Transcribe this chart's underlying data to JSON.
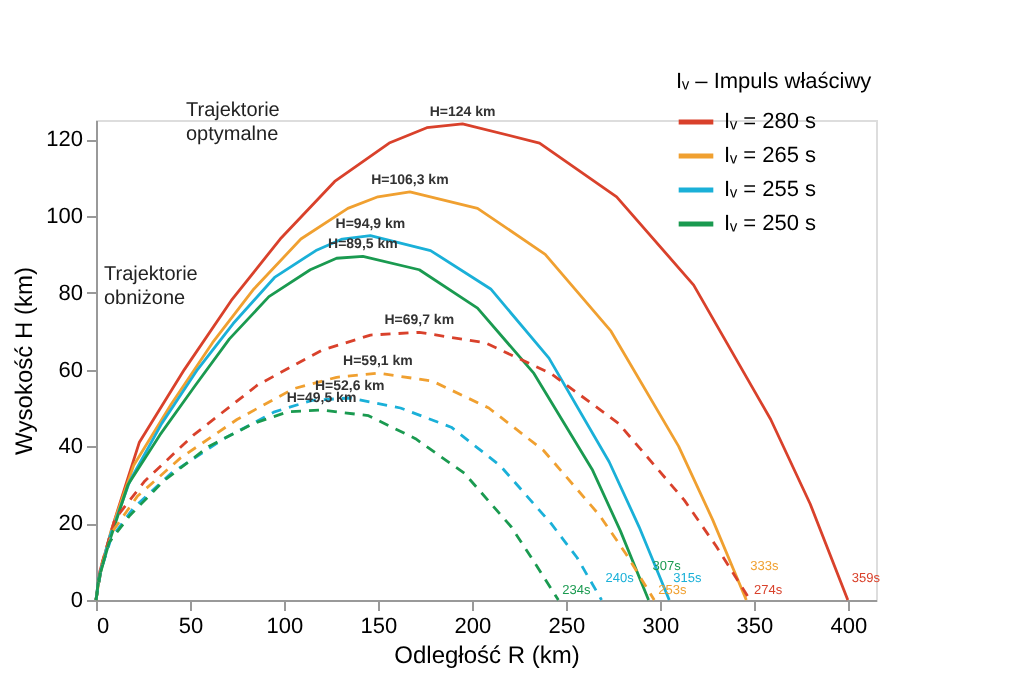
{
  "chart_data": {
    "type": "line",
    "xlabel": "Odległość R (km)",
    "ylabel": "Wysokość H (km)",
    "legend_title": "Iᵥ – Impuls właściwy",
    "legend": "top right",
    "grid": false,
    "marker": "none",
    "xlim": [
      0,
      415
    ],
    "ylim": [
      0,
      125
    ],
    "xticks": [
      0,
      50,
      100,
      150,
      200,
      250,
      300,
      350,
      400
    ],
    "yticks": [
      0,
      20,
      40,
      60,
      80,
      100,
      120
    ],
    "series": [
      {
        "name": "Iᵥ = 280 s",
        "color": "#d9412b",
        "line_style": "solid",
        "x": [
          0,
          2,
          10,
          23,
          47,
          72,
          98,
          127,
          156,
          176,
          195,
          236,
          277,
          318,
          359,
          380,
          400
        ],
        "values": [
          0,
          7.4,
          21,
          41,
          60,
          78,
          94,
          109,
          119,
          123,
          124,
          119,
          105,
          82,
          47,
          25,
          0
        ]
      },
      {
        "name": "Iᵥ = 265 s",
        "color": "#f0a030",
        "line_style": "solid",
        "x": [
          0,
          2,
          8,
          20,
          40,
          62,
          84,
          109,
          134,
          150,
          167,
          203,
          239,
          274,
          310,
          328,
          346
        ],
        "values": [
          0,
          6.4,
          18,
          35,
          51,
          67,
          81,
          94,
          102,
          105,
          106.3,
          102,
          90,
          70,
          40,
          21,
          0
        ]
      },
      {
        "name": "Iᵥ = 255 s",
        "color": "#1ab0d8",
        "line_style": "solid",
        "x": [
          0,
          1.5,
          7,
          18,
          35,
          54,
          73,
          95,
          117,
          131,
          146,
          178,
          210,
          241,
          273,
          289,
          305
        ],
        "values": [
          0,
          5.7,
          16,
          31,
          46,
          60,
          72,
          84,
          91,
          94,
          94.9,
          91,
          81,
          63,
          36,
          19,
          0
        ]
      },
      {
        "name": "Iᵥ = 250 s",
        "color": "#1a9a50",
        "line_style": "solid",
        "x": [
          0,
          1.4,
          7,
          17,
          34,
          53,
          71,
          92,
          114,
          128,
          142,
          172,
          203,
          233,
          264,
          279,
          294
        ],
        "values": [
          0,
          5.4,
          15,
          30,
          43,
          56,
          68,
          79,
          86,
          89,
          89.5,
          86,
          76,
          59,
          34,
          18,
          0
        ]
      },
      {
        "color": "#d9412b",
        "line_style": "dashed",
        "x": [
          0,
          3.4,
          10,
          26,
          52,
          86,
          120,
          146,
          172,
          207,
          242,
          278,
          313,
          330,
          348
        ],
        "values": [
          0,
          10,
          21,
          31,
          43,
          56,
          65,
          69,
          69.7,
          67,
          59,
          46,
          26,
          14,
          0
        ]
      },
      {
        "color": "#f0a030",
        "line_style": "dashed",
        "x": [
          0,
          3,
          9,
          22,
          45,
          75,
          105,
          128,
          150,
          179,
          209,
          238,
          268,
          282,
          297
        ],
        "values": [
          0,
          8.9,
          18,
          27,
          37,
          47,
          55,
          58,
          59.1,
          57,
          50,
          39,
          22,
          12,
          0
        ]
      },
      {
        "color": "#1ab0d8",
        "line_style": "dashed",
        "x": [
          0,
          2.7,
          8,
          20,
          40,
          68,
          95,
          115,
          135,
          162,
          189,
          215,
          242,
          256,
          269
        ],
        "values": [
          0,
          7.9,
          16,
          24,
          33,
          42,
          49,
          52,
          52.6,
          50,
          45,
          35,
          20,
          11,
          0
        ]
      },
      {
        "color": "#1a9a50",
        "line_style": "dashed",
        "x": [
          0,
          2.4,
          7,
          18,
          36,
          60,
          84,
          102,
          120,
          145,
          170,
          196,
          221,
          233,
          246
        ],
        "values": [
          0,
          7.4,
          15,
          22,
          31,
          40,
          46,
          49,
          49.5,
          48,
          42,
          33,
          19,
          10,
          0
        ]
      }
    ],
    "annotations": [
      "Trajektorie\noptymalne",
      "Trajektorie\nobniżone",
      {
        "text": "H=124 km",
        "x": 195,
        "y": 124
      },
      {
        "text": "H=106,3 km",
        "x": 167,
        "y": 106.3
      },
      {
        "text": "H=94,9 km",
        "x": 146,
        "y": 94.9
      },
      {
        "text": "H=89,5 km",
        "x": 142,
        "y": 89.5
      },
      {
        "text": "H=69,7 km",
        "x": 172,
        "y": 69.7
      },
      {
        "text": "H=59,1 km",
        "x": 150,
        "y": 59.1
      },
      {
        "text": "H=52,6 km",
        "x": 135,
        "y": 52.6
      },
      {
        "text": "H=49,5 km",
        "x": 120,
        "y": 49.5
      },
      {
        "text": "359s",
        "x": 400,
        "y": 0
      },
      {
        "text": "333s",
        "x": 346,
        "y": 0
      },
      {
        "text": "315s",
        "x": 305,
        "y": 0
      },
      {
        "text": "307s",
        "x": 294,
        "y": 0
      },
      {
        "text": "274s",
        "x": 348,
        "y": 0
      },
      {
        "text": "253s",
        "x": 297,
        "y": 0
      },
      {
        "text": "240s",
        "x": 269,
        "y": 0
      },
      {
        "text": "234s",
        "x": 246,
        "y": 0
      }
    ]
  }
}
